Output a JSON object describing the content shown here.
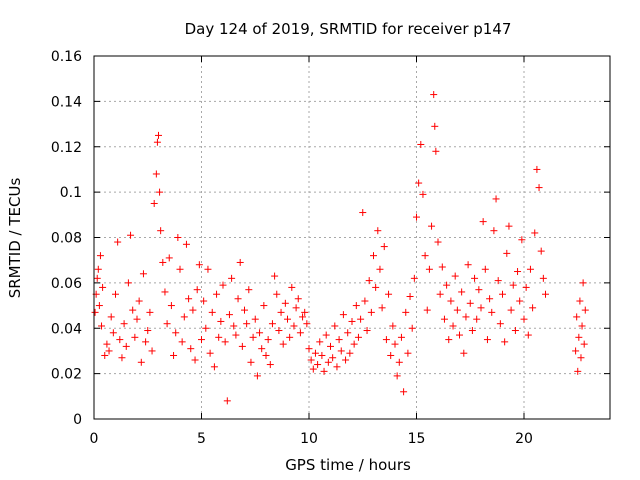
{
  "chart_data": {
    "type": "scatter",
    "title": "Day 124 of 2019, SRMTID for receiver p147",
    "xlabel": "GPS time / hours",
    "ylabel": "SRMTID / TECUs",
    "xlim": [
      0,
      24
    ],
    "ylim": [
      0,
      0.16
    ],
    "xticks": [
      0,
      5,
      10,
      15,
      20
    ],
    "xtick_labels": [
      "0",
      "5",
      "10",
      "15",
      "20"
    ],
    "yticks": [
      0,
      0.02,
      0.04,
      0.06,
      0.08,
      0.1,
      0.12,
      0.14,
      0.16
    ],
    "ytick_labels": [
      "0",
      "0.02",
      "0.04",
      "0.06",
      "0.08",
      "0.1",
      "0.12",
      "0.14",
      "0.16"
    ],
    "grid": true,
    "legend": "none",
    "marker": "+",
    "color": "#ff0000",
    "series": [
      {
        "name": "SRMTID",
        "points": [
          [
            0.05,
            0.047
          ],
          [
            0.1,
            0.055
          ],
          [
            0.15,
            0.062
          ],
          [
            0.2,
            0.066
          ],
          [
            0.25,
            0.05
          ],
          [
            0.3,
            0.072
          ],
          [
            0.35,
            0.041
          ],
          [
            0.4,
            0.058
          ],
          [
            0.5,
            0.028
          ],
          [
            0.6,
            0.033
          ],
          [
            0.7,
            0.03
          ],
          [
            0.8,
            0.045
          ],
          [
            0.9,
            0.038
          ],
          [
            1.0,
            0.055
          ],
          [
            1.1,
            0.078
          ],
          [
            1.2,
            0.035
          ],
          [
            1.3,
            0.027
          ],
          [
            1.4,
            0.042
          ],
          [
            1.5,
            0.032
          ],
          [
            1.6,
            0.06
          ],
          [
            1.7,
            0.081
          ],
          [
            1.8,
            0.048
          ],
          [
            1.9,
            0.036
          ],
          [
            2.0,
            0.044
          ],
          [
            2.1,
            0.052
          ],
          [
            2.2,
            0.025
          ],
          [
            2.3,
            0.064
          ],
          [
            2.4,
            0.034
          ],
          [
            2.5,
            0.039
          ],
          [
            2.6,
            0.047
          ],
          [
            2.7,
            0.03
          ],
          [
            2.8,
            0.095
          ],
          [
            2.9,
            0.108
          ],
          [
            2.95,
            0.122
          ],
          [
            3.0,
            0.125
          ],
          [
            3.05,
            0.1
          ],
          [
            3.1,
            0.083
          ],
          [
            3.2,
            0.069
          ],
          [
            3.3,
            0.056
          ],
          [
            3.4,
            0.042
          ],
          [
            3.5,
            0.071
          ],
          [
            3.6,
            0.05
          ],
          [
            3.7,
            0.028
          ],
          [
            3.8,
            0.038
          ],
          [
            3.9,
            0.08
          ],
          [
            4.0,
            0.066
          ],
          [
            4.1,
            0.034
          ],
          [
            4.2,
            0.045
          ],
          [
            4.3,
            0.077
          ],
          [
            4.4,
            0.053
          ],
          [
            4.5,
            0.031
          ],
          [
            4.6,
            0.048
          ],
          [
            4.7,
            0.026
          ],
          [
            4.8,
            0.057
          ],
          [
            4.9,
            0.068
          ],
          [
            5.0,
            0.035
          ],
          [
            5.1,
            0.052
          ],
          [
            5.2,
            0.04
          ],
          [
            5.3,
            0.066
          ],
          [
            5.4,
            0.029
          ],
          [
            5.5,
            0.047
          ],
          [
            5.6,
            0.023
          ],
          [
            5.7,
            0.055
          ],
          [
            5.8,
            0.036
          ],
          [
            5.9,
            0.043
          ],
          [
            6.0,
            0.059
          ],
          [
            6.1,
            0.034
          ],
          [
            6.2,
            0.008
          ],
          [
            6.3,
            0.046
          ],
          [
            6.4,
            0.062
          ],
          [
            6.5,
            0.041
          ],
          [
            6.6,
            0.037
          ],
          [
            6.7,
            0.053
          ],
          [
            6.8,
            0.069
          ],
          [
            6.9,
            0.032
          ],
          [
            7.0,
            0.048
          ],
          [
            7.1,
            0.042
          ],
          [
            7.2,
            0.057
          ],
          [
            7.3,
            0.025
          ],
          [
            7.4,
            0.036
          ],
          [
            7.5,
            0.044
          ],
          [
            7.6,
            0.019
          ],
          [
            7.7,
            0.038
          ],
          [
            7.8,
            0.031
          ],
          [
            7.9,
            0.05
          ],
          [
            8.0,
            0.028
          ],
          [
            8.1,
            0.035
          ],
          [
            8.2,
            0.024
          ],
          [
            8.3,
            0.042
          ],
          [
            8.4,
            0.063
          ],
          [
            8.5,
            0.055
          ],
          [
            8.6,
            0.039
          ],
          [
            8.7,
            0.047
          ],
          [
            8.8,
            0.033
          ],
          [
            8.9,
            0.051
          ],
          [
            9.0,
            0.044
          ],
          [
            9.1,
            0.036
          ],
          [
            9.2,
            0.058
          ],
          [
            9.3,
            0.041
          ],
          [
            9.4,
            0.049
          ],
          [
            9.5,
            0.053
          ],
          [
            9.6,
            0.038
          ],
          [
            9.7,
            0.045
          ],
          [
            9.8,
            0.047
          ],
          [
            9.9,
            0.042
          ],
          [
            10.0,
            0.031
          ],
          [
            10.1,
            0.026
          ],
          [
            10.2,
            0.022
          ],
          [
            10.3,
            0.029
          ],
          [
            10.4,
            0.024
          ],
          [
            10.5,
            0.034
          ],
          [
            10.6,
            0.028
          ],
          [
            10.7,
            0.021
          ],
          [
            10.8,
            0.037
          ],
          [
            10.9,
            0.025
          ],
          [
            11.0,
            0.032
          ],
          [
            11.1,
            0.027
          ],
          [
            11.2,
            0.041
          ],
          [
            11.3,
            0.023
          ],
          [
            11.4,
            0.035
          ],
          [
            11.5,
            0.03
          ],
          [
            11.6,
            0.046
          ],
          [
            11.7,
            0.026
          ],
          [
            11.8,
            0.038
          ],
          [
            11.9,
            0.029
          ],
          [
            12.0,
            0.043
          ],
          [
            12.1,
            0.033
          ],
          [
            12.2,
            0.05
          ],
          [
            12.3,
            0.036
          ],
          [
            12.4,
            0.044
          ],
          [
            12.5,
            0.091
          ],
          [
            12.6,
            0.052
          ],
          [
            12.7,
            0.039
          ],
          [
            12.8,
            0.061
          ],
          [
            12.9,
            0.047
          ],
          [
            13.0,
            0.072
          ],
          [
            13.1,
            0.058
          ],
          [
            13.2,
            0.083
          ],
          [
            13.3,
            0.066
          ],
          [
            13.4,
            0.049
          ],
          [
            13.5,
            0.076
          ],
          [
            13.6,
            0.035
          ],
          [
            13.7,
            0.055
          ],
          [
            13.8,
            0.028
          ],
          [
            13.9,
            0.041
          ],
          [
            14.0,
            0.033
          ],
          [
            14.1,
            0.019
          ],
          [
            14.2,
            0.025
          ],
          [
            14.3,
            0.036
          ],
          [
            14.4,
            0.012
          ],
          [
            14.5,
            0.047
          ],
          [
            14.6,
            0.029
          ],
          [
            14.7,
            0.054
          ],
          [
            14.8,
            0.04
          ],
          [
            14.9,
            0.062
          ],
          [
            15.0,
            0.089
          ],
          [
            15.1,
            0.104
          ],
          [
            15.2,
            0.121
          ],
          [
            15.3,
            0.099
          ],
          [
            15.4,
            0.072
          ],
          [
            15.5,
            0.048
          ],
          [
            15.6,
            0.066
          ],
          [
            15.7,
            0.085
          ],
          [
            15.8,
            0.143
          ],
          [
            15.85,
            0.129
          ],
          [
            15.9,
            0.118
          ],
          [
            16.0,
            0.078
          ],
          [
            16.1,
            0.055
          ],
          [
            16.2,
            0.067
          ],
          [
            16.3,
            0.044
          ],
          [
            16.4,
            0.059
          ],
          [
            16.5,
            0.035
          ],
          [
            16.6,
            0.052
          ],
          [
            16.7,
            0.041
          ],
          [
            16.8,
            0.063
          ],
          [
            16.9,
            0.048
          ],
          [
            17.0,
            0.037
          ],
          [
            17.1,
            0.056
          ],
          [
            17.2,
            0.029
          ],
          [
            17.3,
            0.045
          ],
          [
            17.4,
            0.068
          ],
          [
            17.5,
            0.051
          ],
          [
            17.6,
            0.039
          ],
          [
            17.7,
            0.062
          ],
          [
            17.8,
            0.044
          ],
          [
            17.9,
            0.057
          ],
          [
            18.0,
            0.049
          ],
          [
            18.1,
            0.087
          ],
          [
            18.2,
            0.066
          ],
          [
            18.3,
            0.035
          ],
          [
            18.4,
            0.053
          ],
          [
            18.5,
            0.047
          ],
          [
            18.6,
            0.083
          ],
          [
            18.7,
            0.097
          ],
          [
            18.8,
            0.061
          ],
          [
            18.9,
            0.042
          ],
          [
            19.0,
            0.055
          ],
          [
            19.1,
            0.034
          ],
          [
            19.2,
            0.073
          ],
          [
            19.3,
            0.085
          ],
          [
            19.4,
            0.048
          ],
          [
            19.5,
            0.059
          ],
          [
            19.6,
            0.039
          ],
          [
            19.7,
            0.065
          ],
          [
            19.8,
            0.052
          ],
          [
            19.9,
            0.079
          ],
          [
            20.0,
            0.044
          ],
          [
            20.1,
            0.058
          ],
          [
            20.2,
            0.037
          ],
          [
            20.3,
            0.066
          ],
          [
            20.4,
            0.049
          ],
          [
            20.5,
            0.082
          ],
          [
            20.6,
            0.11
          ],
          [
            20.7,
            0.102
          ],
          [
            20.8,
            0.074
          ],
          [
            20.9,
            0.062
          ],
          [
            21.0,
            0.055
          ],
          [
            22.4,
            0.03
          ],
          [
            22.45,
            0.045
          ],
          [
            22.5,
            0.021
          ],
          [
            22.55,
            0.036
          ],
          [
            22.6,
            0.052
          ],
          [
            22.65,
            0.027
          ],
          [
            22.7,
            0.041
          ],
          [
            22.75,
            0.06
          ],
          [
            22.8,
            0.033
          ],
          [
            22.85,
            0.048
          ]
        ]
      }
    ]
  }
}
